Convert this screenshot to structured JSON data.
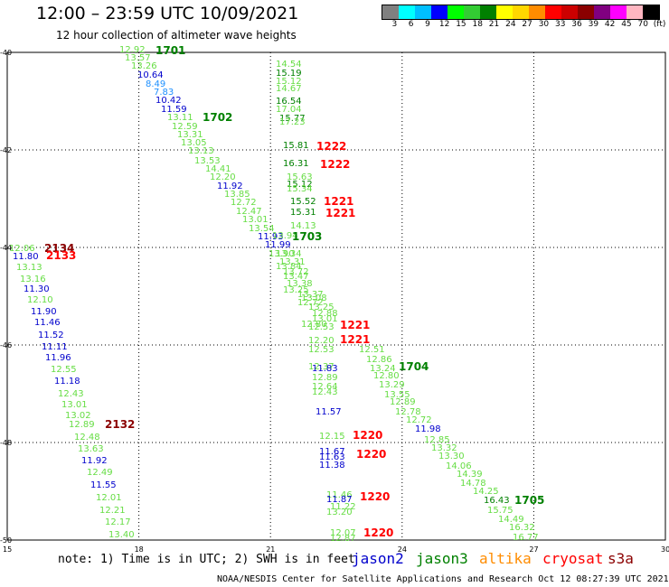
{
  "title": "12:00 – 23:59 UTC 10/09/2021",
  "subtitle": "12 hour collection of altimeter wave heights",
  "colorbar": {
    "colors": [
      "#808080",
      "#00ffff",
      "#00bfff",
      "#0000ff",
      "#00ff00",
      "#33cc33",
      "#008000",
      "#ffff00",
      "#ffd700",
      "#ff8c00",
      "#ff0000",
      "#cc0000",
      "#8b0000",
      "#800080",
      "#ff00ff",
      "#ffb6c1",
      "#000000"
    ],
    "labels": [
      "3",
      "6",
      "9",
      "12",
      "15",
      "18",
      "21",
      "24",
      "27",
      "30",
      "33",
      "36",
      "39",
      "42",
      "45",
      "70",
      "(ft)"
    ]
  },
  "axes": {
    "lat_labels": [
      "-40",
      "-42",
      "-44",
      "-46",
      "-48",
      "-50"
    ],
    "lon_labels": [
      "15",
      "18",
      "21",
      "24",
      "27",
      "30"
    ]
  },
  "note": "note: 1) Time is in UTC; 2) SWH is in feet",
  "satellites": [
    {
      "name": "jason2",
      "color": "#0000cc"
    },
    {
      "name": "jason3",
      "color": "#008000"
    },
    {
      "name": "altika",
      "color": "#ff8c00"
    },
    {
      "name": "cryosat",
      "color": "#ff0000"
    },
    {
      "name": "s3a",
      "color": "#8b0000"
    }
  ],
  "credit": "NOAA/NESDIS Center for Satellite Applications and Research   Oct 12 08:27:39 UTC 2021",
  "colors": {
    "light_green": "#66dd44",
    "blue": "#0000cc",
    "light_blue": "#1e90ff",
    "dark_green": "#008000",
    "red": "#ff0000",
    "dark_red": "#8b0000"
  },
  "tracks": {
    "track1": {
      "values": [
        "12.92",
        "13.57",
        "13.26",
        "10.64",
        "8.49",
        "7.83",
        "10.42",
        "11.59",
        "13.11",
        "12.59",
        "13.31",
        "13.05",
        "13.13",
        "13.53",
        "14.41",
        "12.20",
        "11.92",
        "13.85",
        "12.72",
        "12.47",
        "13.01",
        "13.54",
        "11.93"
      ],
      "colors": [
        "light_green",
        "light_green",
        "light_green",
        "blue",
        "light_blue",
        "light_blue",
        "blue",
        "blue",
        "light_green",
        "light_green",
        "light_green",
        "light_green",
        "light_green",
        "light_green",
        "light_green",
        "light_green",
        "blue",
        "light_green",
        "light_green",
        "light_green",
        "light_green",
        "light_green",
        "blue"
      ]
    },
    "track2": {
      "values": [
        "14.54",
        "15.19",
        "15.12",
        "14.67",
        "16.54",
        "17.04",
        "15.77",
        "17.23",
        "15.81",
        "16.31",
        "15.63",
        "15.12",
        "15.34",
        "15.52",
        "15.31",
        "14.13",
        "13.94",
        "11.99",
        "13.90",
        "13.34",
        "13.31",
        "13.84",
        "13.72",
        "13.47",
        "13.38",
        "13.25",
        "13.37",
        "13.08",
        "12.72",
        "13.25",
        "12.88",
        "13.01",
        "12.80",
        "12.53",
        "12.20",
        "12.53",
        "12.37",
        "11.83",
        "12.89",
        "12.64",
        "12.43",
        "11.57",
        "12.15",
        "11.67",
        "11.63",
        "11.38",
        "11.46",
        "11.87",
        "11.22",
        "13.20",
        "12.07",
        "12.87"
      ],
      "colors": [
        "light_green",
        "dark_green",
        "light_green",
        "light_green",
        "dark_green",
        "light_green",
        "dark_green",
        "light_green",
        "dark_green",
        "dark_green",
        "light_green",
        "dark_green",
        "light_green",
        "dark_green",
        "dark_green",
        "light_green",
        "light_green",
        "blue",
        "light_green",
        "light_green",
        "light_green",
        "light_green",
        "light_green",
        "light_green",
        "light_green",
        "light_green",
        "light_green",
        "light_green",
        "light_green",
        "light_green",
        "light_green",
        "light_green",
        "light_green",
        "light_green",
        "light_green",
        "light_green",
        "light_green",
        "blue",
        "light_green",
        "light_green",
        "light_green",
        "blue",
        "light_green",
        "blue",
        "blue",
        "blue",
        "light_green",
        "blue",
        "light_green",
        "light_green",
        "light_green",
        "light_green"
      ]
    },
    "track3": {
      "values": [
        "12.06",
        "11.80",
        "13.13",
        "13.16",
        "11.30",
        "12.10",
        "11.90",
        "11.46",
        "11.52",
        "11.11",
        "11.96",
        "12.55",
        "11.18",
        "12.43",
        "13.01",
        "13.02",
        "12.89",
        "12.48",
        "13.63",
        "11.92",
        "12.49",
        "11.55",
        "12.01",
        "12.21",
        "12.17",
        "13.40"
      ],
      "colors": [
        "light_green",
        "blue",
        "light_green",
        "light_green",
        "blue",
        "light_green",
        "blue",
        "blue",
        "blue",
        "blue",
        "blue",
        "light_green",
        "blue",
        "light_green",
        "light_green",
        "light_green",
        "light_green",
        "light_green",
        "light_green",
        "blue",
        "light_green",
        "blue",
        "light_green",
        "light_green",
        "light_green",
        "light_green"
      ]
    },
    "track4": {
      "values": [
        "12.51",
        "12.86",
        "13.24",
        "12.80",
        "13.29",
        "13.55",
        "12.89",
        "12.78",
        "12.72",
        "11.98",
        "12.85",
        "13.32",
        "13.30",
        "14.06",
        "14.39",
        "14.78",
        "14.25",
        "16.43",
        "15.75",
        "14.49",
        "16.32",
        "16.77"
      ],
      "colors": [
        "light_green",
        "light_green",
        "light_green",
        "light_green",
        "light_green",
        "light_green",
        "light_green",
        "light_green",
        "light_green",
        "blue",
        "light_green",
        "light_green",
        "light_green",
        "light_green",
        "light_green",
        "light_green",
        "light_green",
        "dark_green",
        "light_green",
        "light_green",
        "light_green",
        "light_green"
      ]
    }
  },
  "time_labels": [
    {
      "text": "1701",
      "color": "dark_green"
    },
    {
      "text": "1702",
      "color": "dark_green"
    },
    {
      "text": "1222",
      "color": "red"
    },
    {
      "text": "1222",
      "color": "red"
    },
    {
      "text": "1221",
      "color": "red"
    },
    {
      "text": "1221",
      "color": "red"
    },
    {
      "text": "1703",
      "color": "dark_green"
    },
    {
      "text": "2134",
      "color": "dark_red"
    },
    {
      "text": "2133",
      "color": "red"
    },
    {
      "text": "1221",
      "color": "red"
    },
    {
      "text": "1221",
      "color": "red"
    },
    {
      "text": "1704",
      "color": "dark_green"
    },
    {
      "text": "2132",
      "color": "dark_red"
    },
    {
      "text": "1220",
      "color": "red"
    },
    {
      "text": "1220",
      "color": "red"
    },
    {
      "text": "1220",
      "color": "red"
    },
    {
      "text": "1705",
      "color": "dark_green"
    },
    {
      "text": "1220",
      "color": "red"
    }
  ]
}
